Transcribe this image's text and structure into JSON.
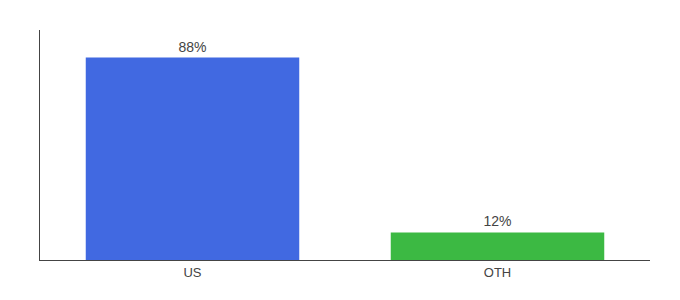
{
  "chart_data": {
    "type": "bar",
    "categories": [
      "US",
      "OTH"
    ],
    "values": [
      88,
      12
    ],
    "value_labels": [
      "88%",
      "12%"
    ],
    "colors": [
      "#4169e1",
      "#3cb943"
    ],
    "ylim": [
      0,
      100
    ],
    "data_labels": true,
    "tick_labels": "x",
    "grid": false
  }
}
